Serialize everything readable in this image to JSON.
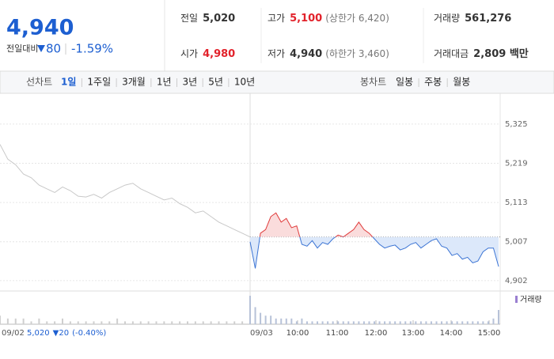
{
  "header": {
    "price": "4,940",
    "change_label": "전일대비",
    "change": "80",
    "change_rate": "-1.59%",
    "stats": [
      [
        {
          "label": "전일",
          "value": "5,020"
        },
        {
          "label": "고가",
          "value": "5,100",
          "note": "(상한가 6,420)",
          "color": "#e2222b"
        },
        {
          "label": "거래량",
          "value": "561,276"
        }
      ],
      [
        {
          "label": "시가",
          "value": "4,980",
          "color": "#e2222b"
        },
        {
          "label": "저가",
          "value": "4,940",
          "note": "(하한가 3,460)"
        },
        {
          "label": "거래대금",
          "value": "2,809 백만"
        }
      ]
    ]
  },
  "tabs": {
    "line_label": "선차트",
    "periods": [
      "1일",
      "1주일",
      "3개월",
      "1년",
      "3년",
      "5년",
      "10년"
    ],
    "candle_label": "봉차트",
    "candle_periods": [
      "일봉",
      "주봉",
      "월봉"
    ]
  },
  "chart_data": {
    "type": "line",
    "ylim": [
      4874,
      5408
    ],
    "yticks": [
      {
        "value": 5325,
        "label": "5,325"
      },
      {
        "value": 5219,
        "label": "5,219"
      },
      {
        "value": 5113,
        "label": "5,113"
      },
      {
        "value": 5007,
        "label": "5,007"
      },
      {
        "value": 4902,
        "label": "4,902"
      }
    ],
    "grid": true,
    "baseline": 5020,
    "prev_day": {
      "label": "09/02",
      "close": "5,020",
      "change": "20",
      "change_rate": "(-0.40%)",
      "color": "#c8c8c8",
      "values": [
        5270,
        5230,
        5215,
        5190,
        5180,
        5160,
        5150,
        5140,
        5155,
        5145,
        5130,
        5128,
        5135,
        5125,
        5140,
        5150,
        5160,
        5165,
        5150,
        5140,
        5130,
        5120,
        5125,
        5110,
        5100,
        5085,
        5090,
        5075,
        5060,
        5050,
        5040,
        5030,
        5020
      ],
      "volume": [
        3,
        2,
        2,
        2,
        1,
        2,
        1,
        1,
        2,
        1,
        1,
        1,
        1,
        1,
        1,
        2,
        1,
        1,
        1,
        1,
        1,
        1,
        1,
        1,
        1,
        1,
        1,
        1,
        1,
        1,
        1,
        1,
        2
      ]
    },
    "today": {
      "label": "09/03",
      "up_color": "#e03a3a",
      "down_color": "#3b74d4",
      "values": [
        5007,
        4935,
        5030,
        5040,
        5075,
        5085,
        5060,
        5070,
        5045,
        5050,
        5000,
        4995,
        5010,
        4990,
        5005,
        5000,
        5015,
        5025,
        5020,
        5030,
        5040,
        5060,
        5040,
        5030,
        5015,
        5000,
        4990,
        4995,
        4998,
        4985,
        4990,
        5000,
        5005,
        4990,
        5000,
        5010,
        5015,
        4995,
        4990,
        4970,
        4975,
        4960,
        4965,
        4950,
        4955,
        4980,
        4990,
        4990,
        4940
      ],
      "volume": [
        10,
        6,
        4,
        3,
        3,
        2,
        2,
        2,
        2,
        1,
        2,
        1,
        1,
        1,
        1,
        1,
        1,
        1,
        1,
        1,
        1,
        1,
        1,
        1,
        1,
        1,
        1,
        1,
        1,
        1,
        1,
        1,
        1,
        1,
        1,
        1,
        1,
        1,
        1,
        1,
        1,
        1,
        1,
        1,
        1,
        1,
        1,
        2,
        5
      ]
    },
    "xticks": [
      "10:00",
      "11:00",
      "12:00",
      "13:00",
      "14:00",
      "15:00"
    ],
    "volume_label": "거래량"
  }
}
